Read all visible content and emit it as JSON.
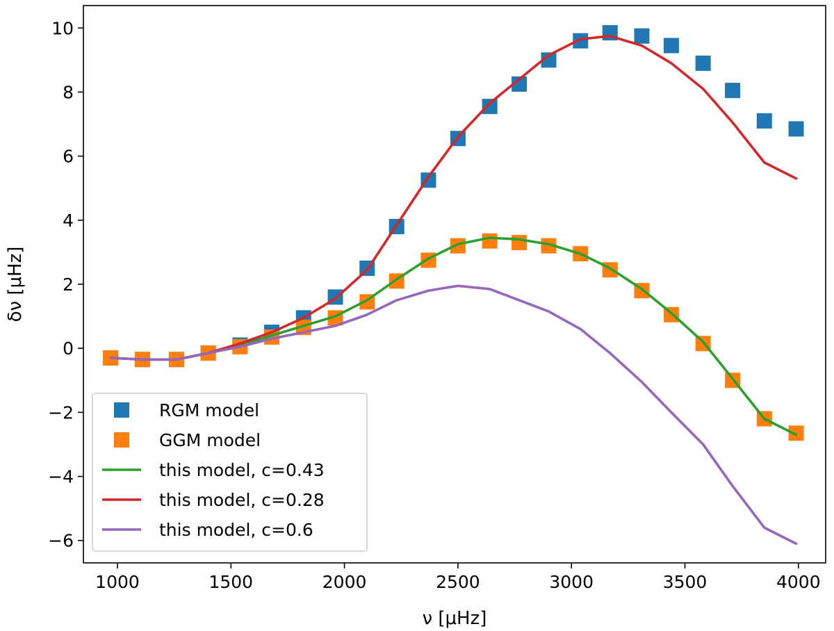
{
  "chart_data": {
    "type": "line",
    "title": "",
    "xlabel": "ν [μHz]",
    "ylabel": "δν [μHz]",
    "xlim": [
      850,
      4120
    ],
    "ylim": [
      -6.7,
      10.7
    ],
    "xticks": [
      1000,
      1500,
      2000,
      2500,
      3000,
      3500,
      4000
    ],
    "yticks": [
      10,
      8,
      6,
      4,
      2,
      0,
      -2,
      -4,
      -6
    ],
    "xtick_labels": [
      "1000",
      "1500",
      "2000",
      "2500",
      "3000",
      "3500",
      "4000"
    ],
    "ytick_labels": [
      "10",
      "8",
      "6",
      "4",
      "2",
      "0",
      "−2",
      "−4",
      "−6"
    ],
    "legend_position": "lower-left",
    "x": [
      970,
      1110,
      1260,
      1400,
      1540,
      1680,
      1820,
      1960,
      2100,
      2230,
      2370,
      2500,
      2640,
      2770,
      2900,
      3040,
      3170,
      3310,
      3440,
      3580,
      3710,
      3850,
      3990
    ],
    "series": [
      {
        "name": "RGM model",
        "kind": "scatter",
        "color": "#1f77b4",
        "values": [
          -0.3,
          -0.35,
          -0.35,
          -0.15,
          0.1,
          0.5,
          0.95,
          1.6,
          2.5,
          3.8,
          5.25,
          6.55,
          7.55,
          8.25,
          9.0,
          9.6,
          9.85,
          9.75,
          9.45,
          8.9,
          8.05,
          7.1,
          6.85
        ]
      },
      {
        "name": "GGM model",
        "kind": "scatter",
        "color": "#ff7f0e",
        "values": [
          -0.3,
          -0.35,
          -0.35,
          -0.15,
          0.05,
          0.35,
          0.65,
          0.95,
          1.45,
          2.1,
          2.75,
          3.2,
          3.35,
          3.3,
          3.2,
          2.95,
          2.45,
          1.8,
          1.05,
          0.15,
          -1.0,
          -2.2,
          -2.65
        ]
      },
      {
        "name": "this model, c=0.43",
        "kind": "line",
        "color": "#2ca02c",
        "values": [
          -0.3,
          -0.35,
          -0.35,
          -0.15,
          0.1,
          0.4,
          0.7,
          1.0,
          1.5,
          2.15,
          2.8,
          3.25,
          3.45,
          3.4,
          3.25,
          2.95,
          2.5,
          1.85,
          1.1,
          0.2,
          -0.95,
          -2.2,
          -2.7
        ]
      },
      {
        "name": "this model, c=0.28",
        "kind": "line",
        "color": "#d62728",
        "values": [
          -0.3,
          -0.35,
          -0.35,
          -0.15,
          0.15,
          0.5,
          0.95,
          1.55,
          2.45,
          3.85,
          5.35,
          6.6,
          7.65,
          8.4,
          9.15,
          9.65,
          9.75,
          9.45,
          8.9,
          8.1,
          7.05,
          5.8,
          5.3
        ]
      },
      {
        "name": "this model, c=0.6",
        "kind": "line",
        "color": "#9467bd",
        "values": [
          -0.3,
          -0.35,
          -0.35,
          -0.15,
          0.05,
          0.3,
          0.5,
          0.7,
          1.05,
          1.5,
          1.8,
          1.95,
          1.85,
          1.5,
          1.15,
          0.6,
          -0.15,
          -1.05,
          -2.0,
          -3.0,
          -4.3,
          -5.6,
          -6.1
        ]
      }
    ]
  }
}
